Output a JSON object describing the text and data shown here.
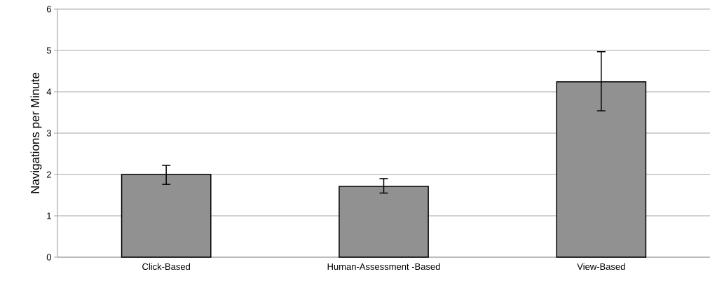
{
  "chart_data": {
    "type": "bar",
    "ylabel": "Navigations per Minute",
    "categories": [
      "Click-Based",
      "Human-Assessment -Based",
      "View-Based"
    ],
    "values": [
      2.0,
      1.71,
      4.24
    ],
    "errors": [
      [
        1.76,
        2.22
      ],
      [
        1.55,
        1.9
      ],
      [
        3.54,
        4.97
      ]
    ],
    "color": "#919191",
    "ylim": [
      0,
      6
    ],
    "yticks": [
      0,
      1,
      2,
      3,
      4,
      5,
      6
    ],
    "grid": "y"
  }
}
